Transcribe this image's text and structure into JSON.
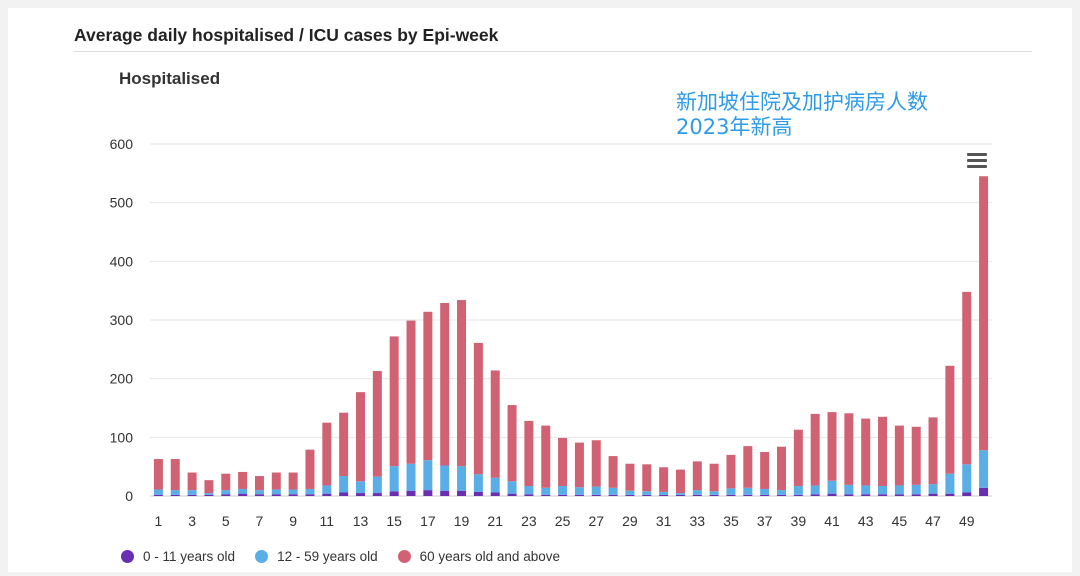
{
  "section_title": "Average daily hospitalised / ICU cases by Epi-week",
  "chart_title": "Hospitalised",
  "overlay_text": "新加坡住院及加护病房人数\n2023年新高",
  "icons": {
    "menu": "hamburger-menu-icon"
  },
  "colors": {
    "age_0_11": "#6a2fb0",
    "age_12_59": "#5aaee8",
    "age_60_plus": "#d06274",
    "grid": "#e6e6e6",
    "axis_text": "#333333"
  },
  "chart_data": {
    "type": "bar",
    "stacked": true,
    "title": "Hospitalised",
    "xlabel": "",
    "ylabel": "",
    "ylim": [
      0,
      600
    ],
    "yticks": [
      0,
      100,
      200,
      300,
      400,
      500,
      600
    ],
    "xtick_labels": [
      "1",
      "3",
      "5",
      "7",
      "9",
      "11",
      "13",
      "15",
      "17",
      "19",
      "21",
      "23",
      "25",
      "27",
      "29",
      "31",
      "33",
      "35",
      "37",
      "39",
      "41",
      "43",
      "45",
      "47",
      "49"
    ],
    "categories": [
      1,
      2,
      3,
      4,
      5,
      6,
      7,
      8,
      9,
      10,
      11,
      12,
      13,
      14,
      15,
      16,
      17,
      18,
      19,
      20,
      21,
      22,
      23,
      24,
      25,
      26,
      27,
      28,
      29,
      30,
      31,
      32,
      33,
      34,
      35,
      36,
      37,
      38,
      39,
      40,
      41,
      42,
      43,
      44,
      45,
      46,
      47,
      48,
      49,
      50
    ],
    "grid": true,
    "legend_position": "bottom-left",
    "series": [
      {
        "name": "0 - 11 years old",
        "color": "#6a2fb0",
        "values": [
          2,
          2,
          2,
          2,
          3,
          4,
          3,
          3,
          3,
          3,
          4,
          6,
          5,
          5,
          8,
          9,
          10,
          9,
          9,
          7,
          6,
          4,
          3,
          2,
          2,
          2,
          2,
          2,
          2,
          2,
          2,
          2,
          2,
          2,
          2,
          2,
          2,
          2,
          2,
          3,
          4,
          3,
          3,
          3,
          3,
          3,
          4,
          4,
          6,
          14
        ]
      },
      {
        "name": "12 - 59 years old",
        "color": "#5aaee8",
        "values": [
          9,
          8,
          8,
          3,
          7,
          8,
          7,
          8,
          8,
          9,
          14,
          28,
          20,
          28,
          43,
          46,
          51,
          43,
          42,
          30,
          25,
          21,
          14,
          12,
          15,
          13,
          14,
          12,
          7,
          6,
          5,
          3,
          8,
          6,
          11,
          12,
          10,
          8,
          15,
          15,
          22,
          16,
          15,
          14,
          15,
          16,
          16,
          34,
          48,
          64
        ]
      },
      {
        "name": "60 years old and above",
        "color": "#d06274",
        "values": [
          52,
          53,
          30,
          22,
          28,
          29,
          24,
          29,
          29,
          67,
          107,
          108,
          152,
          180,
          221,
          244,
          253,
          277,
          283,
          224,
          183,
          130,
          111,
          106,
          82,
          76,
          79,
          54,
          46,
          46,
          42,
          40,
          49,
          47,
          57,
          71,
          63,
          74,
          96,
          122,
          117,
          122,
          114,
          118,
          102,
          99,
          114,
          184,
          294,
          467
        ]
      }
    ]
  }
}
